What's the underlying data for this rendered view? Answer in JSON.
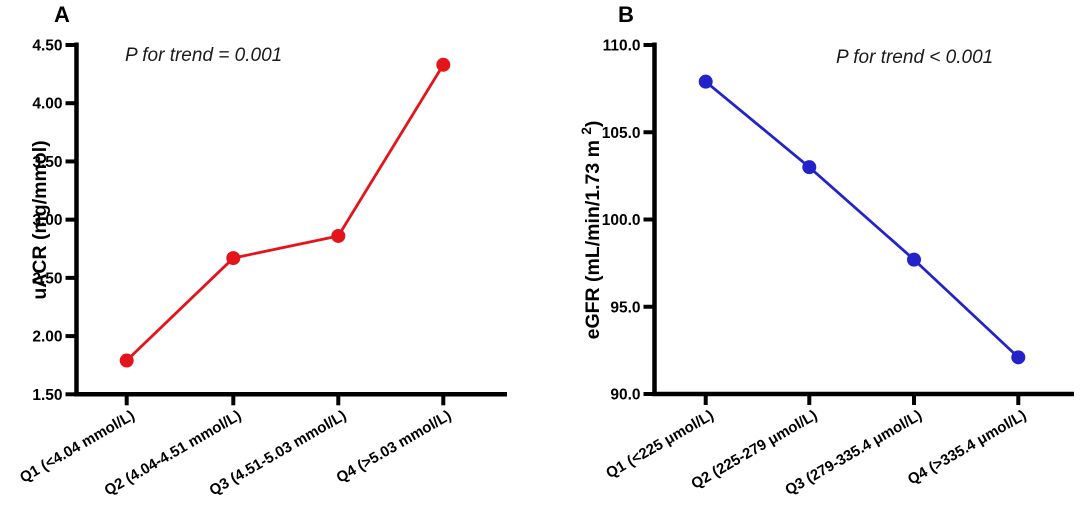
{
  "figure": {
    "background_color": "#ffffff",
    "axis_color": "#000000",
    "text_color": "#000000"
  },
  "chart_data": [
    {
      "type": "line",
      "panel_label": "A",
      "annotation": "P for trend = 0.001",
      "categories": [
        "Q1 (<4.04 mmol/L)",
        "Q2 (4.04-4.51 mmol/L)",
        "Q3 (4.51-5.03 mmol/L)",
        "Q4 (>5.03 mmol/L)"
      ],
      "values": [
        1.79,
        2.67,
        2.86,
        4.33
      ],
      "title": "",
      "xlabel": "",
      "ylabel": "uACR (mg/mmol)",
      "ylim": [
        1.5,
        4.5
      ],
      "ytick_step": 0.5,
      "ytick_decimals": 2,
      "ytick_labels": [
        "4.50",
        "4.00",
        "3.50",
        "3.00",
        "2.50",
        "2.00",
        "1.50"
      ],
      "line_color": "#e3151b",
      "marker": "circle",
      "grid": false,
      "legend": null
    },
    {
      "type": "line",
      "panel_label": "B",
      "annotation": "P for trend < 0.001",
      "categories": [
        "Q1 (<225 μmol/L)",
        "Q2 (225-279 μmol/L)",
        "Q3 (279-335.4 μmol/L)",
        "Q4 (>335.4 μmol/L)"
      ],
      "values": [
        107.9,
        103.0,
        97.7,
        92.1
      ],
      "title": "",
      "xlabel": "",
      "ylabel": "eGFR (mL/min/1.73 m²)",
      "ylim": [
        90.0,
        110.0
      ],
      "ytick_step": 5.0,
      "ytick_decimals": 1,
      "ytick_labels": [
        "110.0",
        "105.0",
        "100.0",
        "95.0",
        "90.0"
      ],
      "line_color": "#2323c9",
      "marker": "circle",
      "grid": false,
      "legend": null
    }
  ]
}
